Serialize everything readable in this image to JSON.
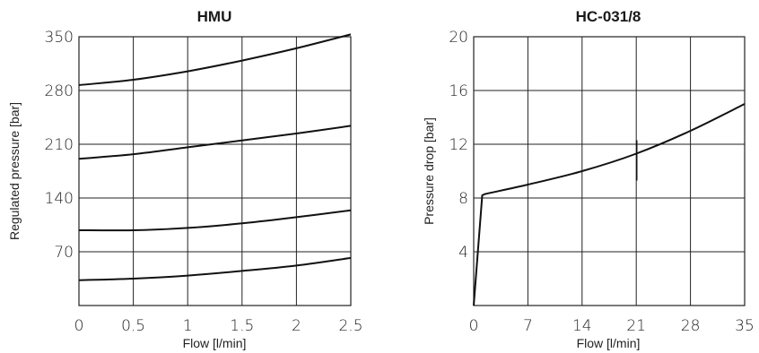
{
  "chart_data": [
    {
      "type": "line",
      "title": "HMU",
      "xlabel": "Flow [l/min]",
      "ylabel": "Regulated pressure [bar]",
      "xlim": [
        0,
        2.5
      ],
      "ylim": [
        0,
        350
      ],
      "x_ticks": [
        "0",
        "0.5",
        "1",
        "1.5",
        "2",
        "2.5"
      ],
      "y_ticks": [
        "70",
        "140",
        "210",
        "280",
        "350"
      ],
      "grid": true,
      "series": [
        {
          "x": [
            0,
            0.5,
            1,
            1.5,
            2,
            2.5
          ],
          "values": [
            287,
            294,
            305,
            319,
            335,
            353
          ]
        },
        {
          "x": [
            0,
            0.5,
            1,
            1.5,
            2,
            2.5
          ],
          "values": [
            191,
            197,
            206,
            215,
            224,
            234
          ]
        },
        {
          "x": [
            0,
            0.5,
            1,
            1.5,
            2,
            2.5
          ],
          "values": [
            98,
            98,
            101,
            107,
            115,
            124
          ]
        },
        {
          "x": [
            0,
            0.5,
            1,
            1.5,
            2,
            2.5
          ],
          "values": [
            33,
            35,
            39,
            45,
            52,
            62
          ]
        }
      ]
    },
    {
      "type": "line",
      "title": "HC-031/8",
      "xlabel": "Flow [l/min]",
      "ylabel": "Pressure drop [bar]",
      "xlim": [
        0,
        35
      ],
      "ylim": [
        0,
        20
      ],
      "x_ticks": [
        "0",
        "7",
        "14",
        "21",
        "28",
        "35"
      ],
      "y_ticks": [
        "4",
        "8",
        "12",
        "16",
        "20"
      ],
      "grid": true,
      "series": [
        {
          "x": [
            0,
            1.1,
            1.5,
            7,
            14,
            21,
            28,
            35
          ],
          "values": [
            0,
            8.2,
            8.3,
            9.0,
            10.0,
            11.3,
            13.0,
            15.0
          ]
        }
      ]
    }
  ]
}
